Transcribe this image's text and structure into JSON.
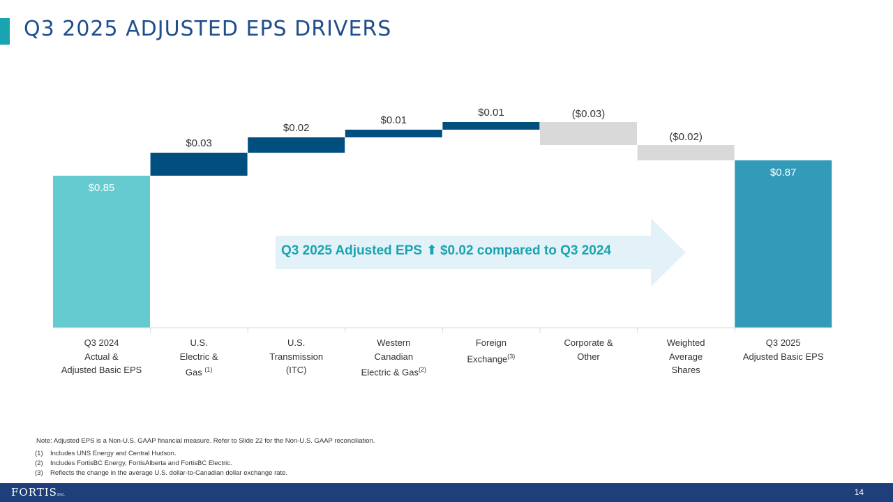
{
  "title": "Q3 2025 ADJUSTED EPS DRIVERS",
  "chart_data": {
    "type": "bar",
    "subtype": "waterfall",
    "ylabel": "",
    "categories": [
      {
        "lines": [
          "Q3 2024",
          "Actual &",
          "Adjusted Basic EPS"
        ],
        "sup": ""
      },
      {
        "lines": [
          "U.S.",
          "Electric &",
          "Gas "
        ],
        "sup": "(1)"
      },
      {
        "lines": [
          "U.S.",
          "Transmission",
          "(ITC)"
        ],
        "sup": ""
      },
      {
        "lines": [
          "Western",
          "Canadian",
          "Electric & Gas"
        ],
        "sup": "(2)"
      },
      {
        "lines": [
          "Foreign",
          "Exchange"
        ],
        "sup": "(3)"
      },
      {
        "lines": [
          "Corporate &",
          "Other"
        ],
        "sup": ""
      },
      {
        "lines": [
          "Weighted",
          "Average",
          "Shares"
        ],
        "sup": ""
      },
      {
        "lines": [
          "Q3 2025",
          "Adjusted Basic EPS"
        ],
        "sup": ""
      }
    ],
    "values": [
      0.85,
      0.03,
      0.02,
      0.01,
      0.01,
      -0.03,
      -0.02,
      0.87
    ],
    "kinds": [
      "total",
      "delta",
      "delta",
      "delta",
      "delta",
      "delta",
      "delta",
      "total"
    ],
    "labels": [
      "$0.85",
      "$0.03",
      "$0.02",
      "$0.01",
      "$0.01",
      "($0.03)",
      "($0.02)",
      "$0.87"
    ],
    "colors": {
      "start_total": "#66cbd0",
      "end_total": "#339bb8",
      "increase": "#004f7f",
      "decrease": "#d9d9d9"
    }
  },
  "callout": {
    "left_text": "Q3 2025 Adjusted EPS",
    "arrow_icon": "⬆",
    "right_text": "$0.02 compared to Q3 2024"
  },
  "note": "Note: Adjusted EPS is a Non-U.S. GAAP financial measure. Refer to Slide 22 for the Non-U.S. GAAP reconciliation.",
  "footnotes": [
    {
      "num": "(1)",
      "text": "Includes UNS Energy and Central Hudson."
    },
    {
      "num": "(2)",
      "text": "Includes FortisBC Energy, FortisAlberta and FortisBC Electric."
    },
    {
      "num": "(3)",
      "text": "Reflects the change in the average U.S. dollar-to-Canadian dollar exchange rate."
    }
  ],
  "footer": {
    "logo": "FORTIS",
    "logo_suffix": "INC.",
    "page_number": "14"
  }
}
